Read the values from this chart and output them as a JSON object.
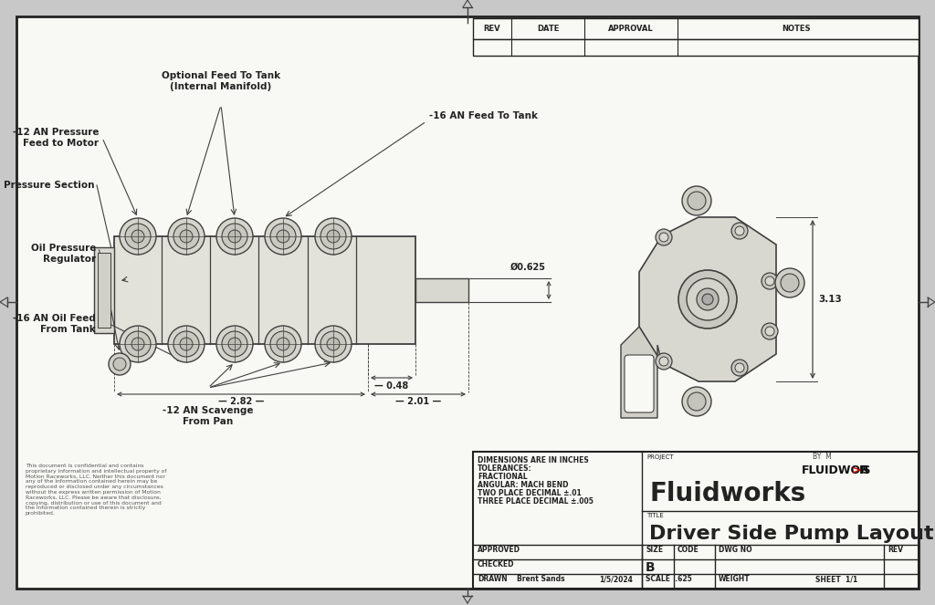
{
  "bg_color": "#c8c8c8",
  "drawing_bg": "#f8f8f4",
  "border_color": "#222222",
  "line_color": "#404040",
  "title_block": {
    "project": "Fluidworks",
    "title": "Driver Side Pump Layout",
    "drawn_by": "Brent Sands",
    "date": "1/5/2024",
    "scale": ".625",
    "sheet": "1/1",
    "size": "B",
    "tolerances_line1": "DIMENSIONS ARE IN INCHES",
    "tolerances_line2": "TOLERANCES:",
    "tolerances_line3": "FRACTIONAL",
    "tolerances_line4": "ANGULAR: MACH BEND",
    "tolerances_line5": "TWO PLACE DECIMAL ±.01",
    "tolerances_line6": "THREE PLACE DECIMAL ±.005"
  },
  "confidential_text": "This document is confidential and contains\nproprietary information and intellectual property of\nMotion Raceworks, LLC. Neither this document nor\nany of the information contained herein may be\nreproduced or disclosed under any circumstances\nwithout the express written permission of Motion\nRaceworks, LLC. Please be aware that disclosure,\ncopying, distribution or use of this document and\nthe information contained therein is strictly\nprohibited.",
  "annotations": {
    "optional_feed": "Optional Feed To Tank\n(Internal Manifold)",
    "an12_pressure": "-12 AN Pressure\nFeed to Motor",
    "an16_feed": "-16 AN Feed To Tank",
    "pressure_section": "Pressure Section",
    "oil_pressure": "Oil Pressure\nRegulator",
    "an16_oil": "-16 AN Oil Feed\nFrom Tank",
    "an12_scavenge": "-12 AN Scavenge\nFrom Pan",
    "dim_048": "— 0.48",
    "dim_282": "2.82",
    "dim_201": "2.01",
    "dim_0625": "Ø0.625",
    "dim_313": "3.13"
  }
}
